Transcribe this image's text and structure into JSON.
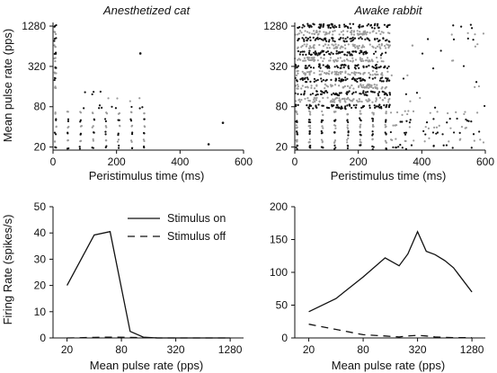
{
  "figure": {
    "panel_a_title": "Anesthetized cat",
    "panel_b_title": "Awake rabbit",
    "raster_ylabel": "Mean pulse rate (pps)",
    "raster_xlabel": "Peristimulus time (ms)",
    "rate_ylabel": "Firing Rate (spikes/s)",
    "rate_xlabel": "Mean pulse rate (pps)",
    "legend_on": "Stimulus on",
    "legend_off": "Stimulus off"
  },
  "chart_data": [
    {
      "type": "scatter",
      "panel": "raster-cat",
      "title": "Anesthetized cat",
      "xlabel": "Peristimulus time (ms)",
      "ylabel": "Mean pulse rate (pps)",
      "xlim": [
        0,
        600
      ],
      "ylim": [
        18,
        1450
      ],
      "yscale": "log",
      "xticks": [
        0,
        200,
        400,
        600
      ],
      "yticks": [
        20,
        80,
        320,
        1280
      ],
      "stimulus_duration_ms": 300,
      "colors": {
        "dark": "#111111",
        "light": "#9a9a9a"
      },
      "isolated_spikes": [
        {
          "x": 275,
          "y": 500
        },
        {
          "x": 490,
          "y": 22
        },
        {
          "x": 535,
          "y": 46
        }
      ]
    },
    {
      "type": "scatter",
      "panel": "raster-rabbit",
      "title": "Awake rabbit",
      "xlabel": "Peristimulus time (ms)",
      "ylabel": "",
      "xlim": [
        0,
        600
      ],
      "ylim": [
        18,
        1450
      ],
      "yscale": "log",
      "xticks": [
        0,
        200,
        400,
        600
      ],
      "yticks": [
        20,
        80,
        320,
        1280
      ],
      "stimulus_duration_ms": 300,
      "colors": {
        "dark": "#111111",
        "light": "#9a9a9a"
      }
    },
    {
      "type": "line",
      "panel": "rate-cat",
      "xlabel": "Mean pulse rate (pps)",
      "ylabel": "Firing Rate (spikes/s)",
      "xscale": "log",
      "xlim": [
        14,
        1800
      ],
      "ylim": [
        0,
        50
      ],
      "xticks": [
        20,
        80,
        320,
        1280
      ],
      "yticks": [
        0,
        10,
        20,
        30,
        40,
        50
      ],
      "x": [
        20,
        40,
        60,
        100,
        140,
        200,
        320,
        500,
        1000,
        1280
      ],
      "series": [
        {
          "name": "Stimulus on",
          "style": "solid",
          "values": [
            20,
            39.2,
            40.5,
            2.5,
            0.3,
            0,
            0,
            0,
            0,
            0
          ]
        },
        {
          "name": "Stimulus off",
          "style": "dashed",
          "values": [
            0,
            0.2,
            0.3,
            0.2,
            0.1,
            0,
            0,
            0,
            0,
            0
          ]
        }
      ],
      "legend": "top-right"
    },
    {
      "type": "line",
      "panel": "rate-rabbit",
      "xlabel": "Mean pulse rate (pps)",
      "ylabel": "",
      "xscale": "log",
      "xlim": [
        14,
        1800
      ],
      "ylim": [
        0,
        200
      ],
      "xticks": [
        20,
        80,
        320,
        1280
      ],
      "yticks": [
        0,
        50,
        100,
        150,
        200
      ],
      "x": [
        20,
        40,
        80,
        140,
        200,
        250,
        320,
        400,
        500,
        640,
        800,
        1280
      ],
      "series": [
        {
          "name": "Stimulus on",
          "style": "solid",
          "values": [
            40,
            60,
            93,
            122,
            110,
            128,
            162,
            132,
            127,
            118,
            107,
            70
          ]
        },
        {
          "name": "Stimulus off",
          "style": "dashed",
          "values": [
            21,
            13,
            5,
            3,
            1.5,
            3,
            4,
            3,
            1.5,
            1,
            0.5,
            0.5
          ]
        }
      ]
    }
  ]
}
